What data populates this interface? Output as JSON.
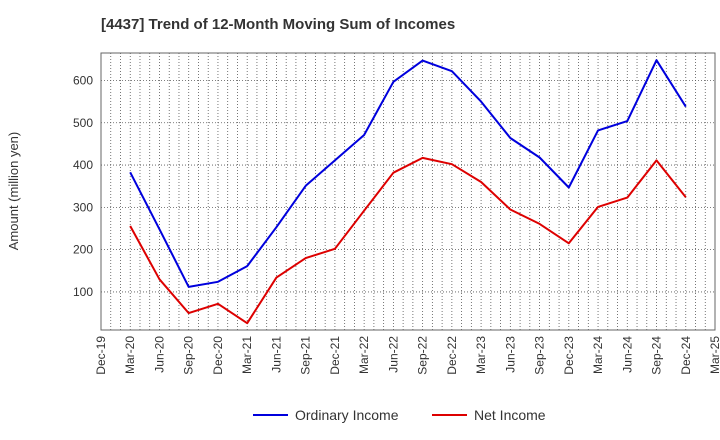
{
  "chart_data": {
    "type": "line",
    "title": "[4437]  Trend of 12-Month Moving Sum of Incomes",
    "xlabel": "",
    "ylabel": "Amount (million yen)",
    "ylim": [
      10,
      665
    ],
    "yticks": [
      100,
      200,
      300,
      400,
      500,
      600
    ],
    "grid": true,
    "legend": "bottom-center",
    "x_labels": [
      "Dec-19",
      "Mar-20",
      "Jun-20",
      "Sep-20",
      "Dec-20",
      "Mar-21",
      "Jun-21",
      "Sep-21",
      "Dec-21",
      "Mar-22",
      "Jun-22",
      "Sep-22",
      "Dec-22",
      "Mar-23",
      "Jun-23",
      "Sep-23",
      "Dec-23",
      "Mar-24",
      "Jun-24",
      "Sep-24",
      "Dec-24",
      "Mar-25"
    ],
    "series": [
      {
        "name": "Ordinary Income",
        "color": "#0000dd",
        "values": [
          null,
          383,
          248,
          112,
          124,
          161,
          253,
          351,
          411,
          471,
          597,
          647,
          622,
          550,
          464,
          418,
          347,
          482,
          504,
          648,
          538,
          null
        ]
      },
      {
        "name": "Net Income",
        "color": "#dd0000",
        "values": [
          null,
          256,
          130,
          50,
          72,
          26,
          134,
          180,
          202,
          292,
          382,
          417,
          402,
          360,
          295,
          261,
          215,
          301,
          323,
          411,
          324,
          null
        ]
      }
    ]
  }
}
